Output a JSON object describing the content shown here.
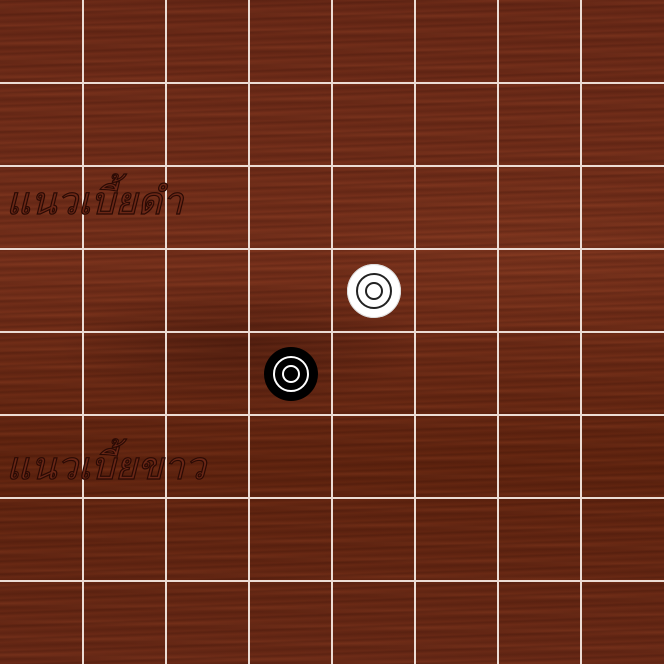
{
  "board": {
    "rows": 8,
    "cols": 8,
    "board_color": "#6b2a17",
    "grid_line_color": "#ecdcd4"
  },
  "labels": {
    "black_row": "แนวเบี้ยดำ",
    "white_row": "แนวเบี้ยขาว"
  },
  "pieces": [
    {
      "name": "white-piece",
      "color": "white",
      "row": 3,
      "col": 4
    },
    {
      "name": "black-piece",
      "color": "black",
      "row": 4,
      "col": 3
    }
  ]
}
